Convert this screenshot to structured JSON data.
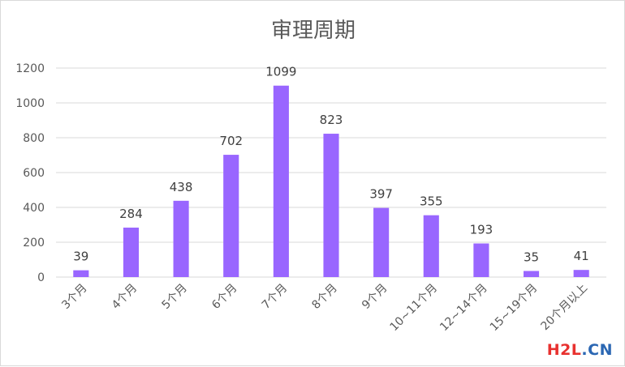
{
  "chart_data": {
    "type": "bar",
    "title": "审理周期",
    "categories": [
      "3个月",
      "4个月",
      "5个月",
      "6个月",
      "7个月",
      "8个月",
      "9个月",
      "10~11个月",
      "12~14个月",
      "15~19个月",
      "20个月以上"
    ],
    "values": [
      39,
      284,
      438,
      702,
      1099,
      823,
      397,
      355,
      193,
      35,
      41
    ],
    "ylim": [
      0,
      1200
    ],
    "yticks": [
      0,
      200,
      400,
      600,
      800,
      1000,
      1200
    ],
    "grid": true,
    "legend": "none",
    "bar_color": "#9966ff"
  },
  "watermark": {
    "part_a": "H2L",
    "part_b": ".CN"
  }
}
